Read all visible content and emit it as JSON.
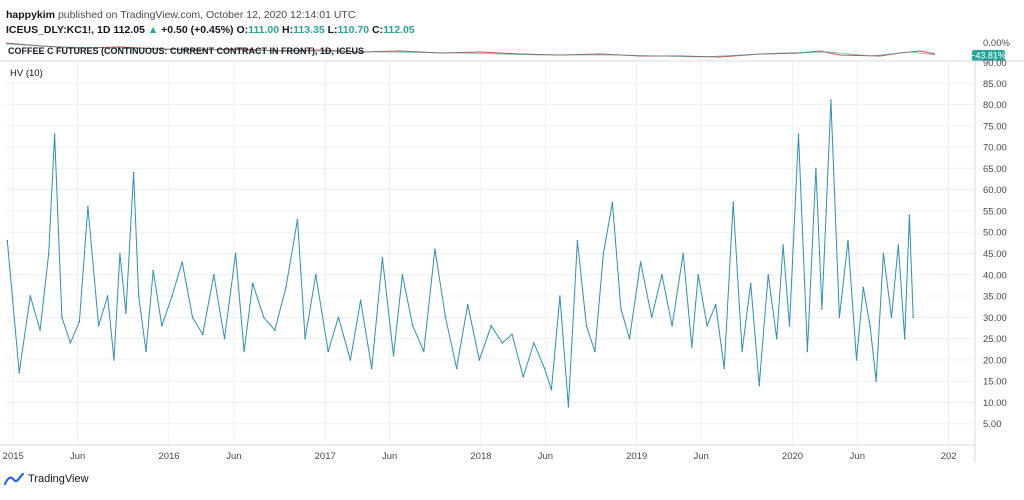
{
  "header": {
    "user": "happykim",
    "published_text": "published on TradingView.com, October 12, 2020 12:14:01 UTC",
    "symbol": "ICEUS_DLY:KC1!, 1D",
    "last": "112.05",
    "arrow": "▲",
    "change": "+0.50 (+0.45%)",
    "open_label": "O:",
    "open": "111.00",
    "high_label": "H:",
    "high": "113.35",
    "low_label": "L:",
    "low": "110.70",
    "close_label": "C:",
    "close": "112.05"
  },
  "top_pane": {
    "title": "COFFEE C FUTURES (CONTINUOUS: CURRENT CONTRACT IN FRONT), 1D, ICEUS",
    "scale_label": "0.00%",
    "badge": "−43.81%",
    "cut_label": "90.00",
    "badge_color": "#26a69a"
  },
  "chart_data": {
    "type": "line",
    "title": "HV (10)",
    "line_color": "#2e8fb8",
    "grid": true,
    "ylim": [
      0,
      90
    ],
    "y_ticks": [
      "5.00",
      "10.00",
      "15.00",
      "20.00",
      "25.00",
      "30.00",
      "35.00",
      "40.00",
      "45.00",
      "50.00",
      "55.00",
      "60.00",
      "65.00",
      "70.00",
      "75.00",
      "80.00",
      "85.00"
    ],
    "x_ticks": [
      "2015",
      "Jun",
      "2016",
      "Jun",
      "2017",
      "Jun",
      "2018",
      "Jun",
      "2019",
      "Jun",
      "2020",
      "Jun",
      "202"
    ],
    "xlim": [
      "2014-12-15",
      "2021-02-20"
    ],
    "x_tick_dates": [
      "2015-01-01",
      "2015-06-01",
      "2016-01-01",
      "2016-06-01",
      "2017-01-01",
      "2017-06-01",
      "2018-01-01",
      "2018-06-01",
      "2019-01-01",
      "2019-06-01",
      "2020-01-01",
      "2020-06-01",
      "2021-01-01"
    ],
    "series": [
      {
        "x": [
          "2014-12-18",
          "2015-01-15",
          "2015-02-10",
          "2015-03-05",
          "2015-03-25",
          "2015-04-08",
          "2015-04-25",
          "2015-05-15",
          "2015-06-05",
          "2015-06-25",
          "2015-07-20",
          "2015-08-10",
          "2015-08-25",
          "2015-09-08",
          "2015-09-22",
          "2015-10-10",
          "2015-10-22",
          "2015-11-08",
          "2015-11-25",
          "2015-12-15",
          "2016-01-08",
          "2016-02-01",
          "2016-02-25",
          "2016-03-20",
          "2016-04-15",
          "2016-05-10",
          "2016-06-05",
          "2016-06-25",
          "2016-07-15",
          "2016-08-10",
          "2016-09-05",
          "2016-10-01",
          "2016-10-28",
          "2016-11-15",
          "2016-12-10",
          "2017-01-08",
          "2017-02-01",
          "2017-03-01",
          "2017-03-25",
          "2017-04-20",
          "2017-05-15",
          "2017-06-10",
          "2017-07-01",
          "2017-07-25",
          "2017-08-20",
          "2017-09-15",
          "2017-10-10",
          "2017-11-05",
          "2017-12-01",
          "2017-12-28",
          "2018-01-25",
          "2018-02-20",
          "2018-03-15",
          "2018-04-10",
          "2018-05-05",
          "2018-05-30",
          "2018-06-15",
          "2018-07-05",
          "2018-07-25",
          "2018-08-15",
          "2018-09-05",
          "2018-09-25",
          "2018-10-15",
          "2018-11-05",
          "2018-11-25",
          "2018-12-15",
          "2019-01-10",
          "2019-02-05",
          "2019-03-01",
          "2019-03-25",
          "2019-04-20",
          "2019-05-10",
          "2019-05-25",
          "2019-06-15",
          "2019-07-05",
          "2019-07-25",
          "2019-08-15",
          "2019-09-05",
          "2019-09-25",
          "2019-10-15",
          "2019-11-05",
          "2019-11-25",
          "2019-12-10",
          "2019-12-25",
          "2020-01-15",
          "2020-02-05",
          "2020-02-25",
          "2020-03-10",
          "2020-03-20",
          "2020-03-31",
          "2020-04-20",
          "2020-05-10",
          "2020-05-30",
          "2020-06-15",
          "2020-07-01",
          "2020-07-15",
          "2020-08-01",
          "2020-08-20",
          "2020-09-05",
          "2020-09-20",
          "2020-10-01",
          "2020-10-10"
        ],
        "values": [
          48,
          17,
          35,
          27,
          45,
          73,
          30,
          24,
          29,
          56,
          28,
          35,
          20,
          45,
          31,
          64,
          35,
          22,
          41,
          28,
          35,
          43,
          30,
          26,
          40,
          25,
          45,
          22,
          38,
          30,
          27,
          37,
          53,
          25,
          40,
          22,
          30,
          20,
          34,
          18,
          44,
          21,
          40,
          28,
          22,
          46,
          30,
          18,
          33,
          20,
          28,
          24,
          26,
          16,
          24,
          18,
          13,
          35,
          9,
          48,
          28,
          22,
          45,
          57,
          32,
          25,
          43,
          30,
          40,
          28,
          45,
          23,
          40,
          28,
          33,
          18,
          57,
          22,
          38,
          14,
          40,
          25,
          47,
          28,
          73,
          22,
          65,
          32,
          55,
          81,
          30,
          48,
          20,
          37,
          28,
          15,
          45,
          30,
          47,
          25,
          54,
          30
        ]
      }
    ]
  },
  "logo": {
    "text": "TradingView"
  }
}
